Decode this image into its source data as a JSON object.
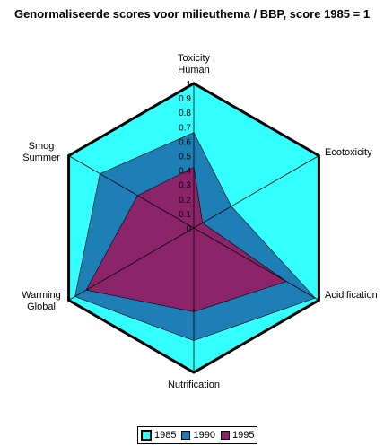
{
  "chart_data": {
    "type": "radar",
    "title": "Genormaliseerde scores voor milieuthema / BBP, score 1985 = 1",
    "axes": [
      {
        "name": "Toxicity Human",
        "lines": [
          "Toxicity",
          "Human"
        ]
      },
      {
        "name": "Ecotoxicity",
        "lines": [
          "Ecotoxicity"
        ]
      },
      {
        "name": "Acidification",
        "lines": [
          "Acidification"
        ]
      },
      {
        "name": "Nutrification",
        "lines": [
          "Nutrification"
        ]
      },
      {
        "name": "Warming Global",
        "lines": [
          "Warming",
          "Global"
        ]
      },
      {
        "name": "Smog Summer",
        "lines": [
          "Smog",
          "Summer"
        ]
      }
    ],
    "range": [
      0,
      1
    ],
    "ticks": [
      "0",
      "0.1",
      "0.2",
      "0.3",
      "0.4",
      "0.5",
      "0.6",
      "0.7",
      "0.8",
      "0.9",
      "1"
    ],
    "series": [
      {
        "name": "1985",
        "values": [
          1,
          1,
          1,
          1,
          1,
          1
        ],
        "color": "#33ffff"
      },
      {
        "name": "1990",
        "values": [
          0.66,
          0.3,
          0.97,
          0.78,
          0.95,
          0.75
        ],
        "color": "#1e7fb7"
      },
      {
        "name": "1995",
        "values": [
          0.42,
          0.07,
          0.74,
          0.58,
          0.86,
          0.45
        ],
        "color": "#8b2468"
      }
    ],
    "legend_position": "bottom"
  }
}
